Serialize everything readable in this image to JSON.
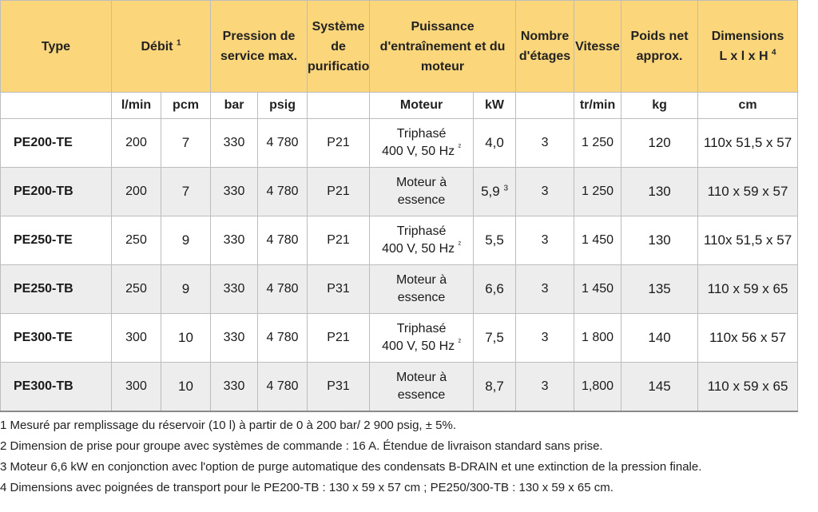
{
  "header": {
    "type": "Type",
    "debit": "Débit",
    "debit_sup": "1",
    "pression": "Pression de service max.",
    "systeme": "Système de purification",
    "puissance": "Puissance d'entraînement et du moteur",
    "etages": "Nombre d'étages",
    "vitesse": "Vitesse",
    "poids": "Poids net approx.",
    "dimensions_line1": "Dimensions",
    "dimensions_line2": "L x l x H",
    "dimensions_sup": "4"
  },
  "units": {
    "lmin": "l/min",
    "pcm": "pcm",
    "bar": "bar",
    "psig": "psig",
    "moteur": "Moteur",
    "kw": "kW",
    "trmin": "tr/min",
    "kg": "kg",
    "cm": "cm"
  },
  "rows": [
    {
      "type": "PE200-TE",
      "lmin": "200",
      "pcm": "7",
      "bar": "330",
      "psig": "4 780",
      "systeme": "P21",
      "moteur_l1": "Triphasé",
      "moteur_l2": "400 V, 50 Hz",
      "moteur_sup": "²",
      "kw": "4,0",
      "kw_sup": "",
      "etages": "3",
      "trmin": "1 250",
      "kg": "120",
      "dims": "110x 51,5 x 57"
    },
    {
      "type": "PE200-TB",
      "lmin": "200",
      "pcm": "7",
      "bar": "330",
      "psig": "4 780",
      "systeme": "P21",
      "moteur_l1": "Moteur à",
      "moteur_l2": "essence",
      "moteur_sup": "",
      "kw": "5,9",
      "kw_sup": "3",
      "etages": "3",
      "trmin": "1 250",
      "kg": "130",
      "dims": "110 x 59 x 57"
    },
    {
      "type": "PE250-TE",
      "lmin": "250",
      "pcm": "9",
      "bar": "330",
      "psig": "4 780",
      "systeme": "P21",
      "moteur_l1": "Triphasé",
      "moteur_l2": "400 V, 50 Hz",
      "moteur_sup": "²",
      "kw": "5,5",
      "kw_sup": "",
      "etages": "3",
      "trmin": "1 450",
      "kg": "130",
      "dims": "110x 51,5 x 57"
    },
    {
      "type": "PE250-TB",
      "lmin": "250",
      "pcm": "9",
      "bar": "330",
      "psig": "4 780",
      "systeme": "P31",
      "moteur_l1": "Moteur à",
      "moteur_l2": "essence",
      "moteur_sup": "",
      "kw": "6,6",
      "kw_sup": "",
      "etages": "3",
      "trmin": "1 450",
      "kg": "135",
      "dims": "110 x 59 x 65"
    },
    {
      "type": "PE300-TE",
      "lmin": "300",
      "pcm": "10",
      "bar": "330",
      "psig": "4 780",
      "systeme": "P21",
      "moteur_l1": "Triphasé",
      "moteur_l2": "400 V, 50 Hz",
      "moteur_sup": "²",
      "kw": "7,5",
      "kw_sup": "",
      "etages": "3",
      "trmin": "1 800",
      "kg": "140",
      "dims": "110x 56 x 57"
    },
    {
      "type": "PE300-TB",
      "lmin": "300",
      "pcm": "10",
      "bar": "330",
      "psig": "4 780",
      "systeme": "P31",
      "moteur_l1": "Moteur à",
      "moteur_l2": "essence",
      "moteur_sup": "",
      "kw": "8,7",
      "kw_sup": "",
      "etages": "3",
      "trmin": "1,800",
      "kg": "145",
      "dims": "110 x 59 x 65"
    }
  ],
  "notes": [
    "1  Mesuré par remplissage du réservoir (10 l) à partir de 0 à 200 bar/ 2 900 psig, ± 5%.",
    "2  Dimension de prise pour groupe avec systèmes de commande : 16 A. Étendue de livraison standard sans prise.",
    "3  Moteur 6,6 kW en conjonction avec l'option de purge automatique des condensats B-DRAIN et une extinction de la pression finale.",
    "4 Dimensions avec poignées de transport pour le PE200-TB : 130 x 59 x 57 cm ; PE250/300-TB : 130 x 59 x 65 cm."
  ],
  "colors": {
    "header_bg": "#fbd67a",
    "row_alt_bg": "#ededed",
    "border": "#bdbdbd"
  }
}
